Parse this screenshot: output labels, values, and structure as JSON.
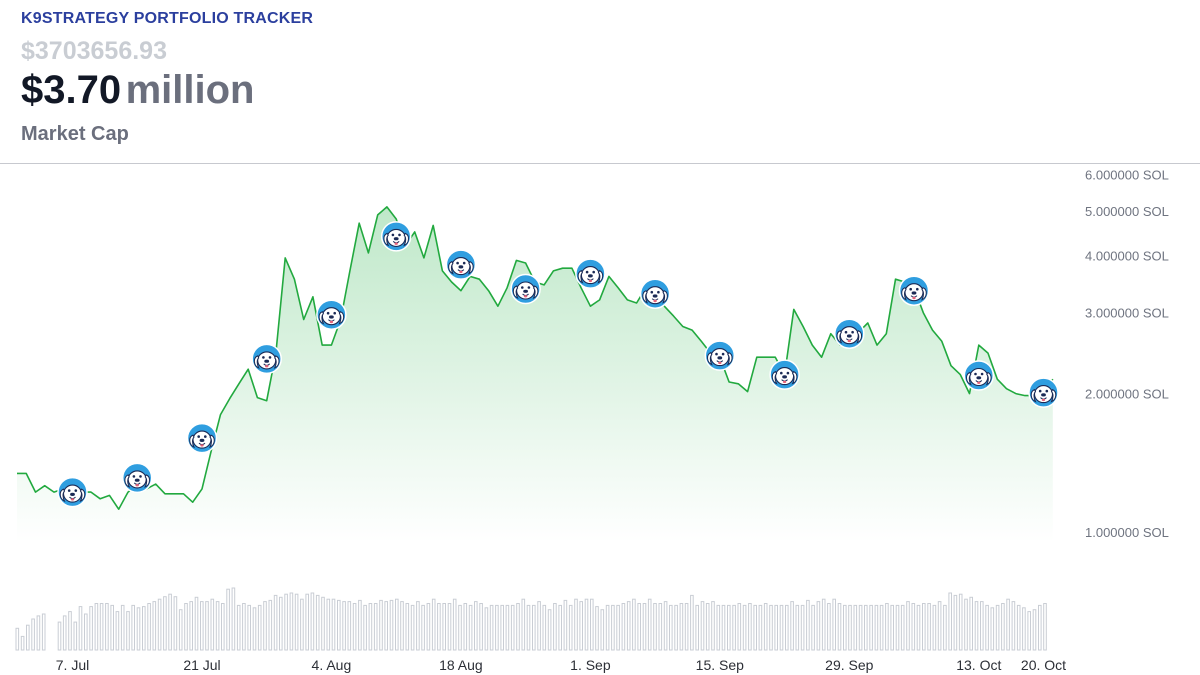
{
  "header": {
    "brand": "K9STRATEGY PORTFOLIO TRACKER",
    "raw_value": "$3703656.93",
    "cap_value": "$3.70",
    "cap_unit": "million",
    "cap_label": "Market Cap"
  },
  "colors": {
    "line": "#22a93f",
    "fill_top": "#bfe8c9",
    "volume": "#c9cdd4",
    "marker": "#2f9ee0"
  },
  "icons": {
    "marker": "dog-face-icon"
  },
  "chart_data": {
    "type": "line",
    "yscale": "log",
    "ylim": [
      0.95,
      6.2
    ],
    "xlim": [
      "2025-07-01",
      "2025-10-22"
    ],
    "y_ticks": [
      1,
      2,
      3,
      4,
      5,
      6
    ],
    "y_tick_labels": [
      "1.000000 SOL",
      "2.000000 SOL",
      "3.000000 SOL",
      "4.000000 SOL",
      "5.000000 SOL",
      "6.000000 SOL"
    ],
    "x_ticks": [
      "2025-07-07",
      "2025-07-21",
      "2025-08-04",
      "2025-08-18",
      "2025-09-01",
      "2025-09-15",
      "2025-09-29",
      "2025-10-13",
      "2025-10-20"
    ],
    "x_tick_labels": [
      "7. Jul",
      "21 Jul",
      "4. Aug",
      "18 Aug",
      "1. Sep",
      "15. Sep",
      "29. Sep",
      "13. Oct",
      "20. Oct"
    ],
    "grid": false,
    "series": [
      {
        "x": [
          "2025-07-01",
          "2025-07-02",
          "2025-07-03",
          "2025-07-04",
          "2025-07-05",
          "2025-07-06",
          "2025-07-07",
          "2025-07-08",
          "2025-07-09",
          "2025-07-10",
          "2025-07-11",
          "2025-07-12",
          "2025-07-13",
          "2025-07-14",
          "2025-07-15",
          "2025-07-16",
          "2025-07-17",
          "2025-07-18",
          "2025-07-19",
          "2025-07-20",
          "2025-07-21",
          "2025-07-22",
          "2025-07-23",
          "2025-07-24",
          "2025-07-25",
          "2025-07-26",
          "2025-07-27",
          "2025-07-28",
          "2025-07-29",
          "2025-07-30",
          "2025-07-31",
          "2025-08-01",
          "2025-08-02",
          "2025-08-03",
          "2025-08-04",
          "2025-08-05",
          "2025-08-06",
          "2025-08-07",
          "2025-08-08",
          "2025-08-09",
          "2025-08-10",
          "2025-08-11",
          "2025-08-12",
          "2025-08-13",
          "2025-08-14",
          "2025-08-15",
          "2025-08-16",
          "2025-08-17",
          "2025-08-18",
          "2025-08-19",
          "2025-08-20",
          "2025-08-21",
          "2025-08-22",
          "2025-08-23",
          "2025-08-24",
          "2025-08-25",
          "2025-08-26",
          "2025-08-27",
          "2025-08-28",
          "2025-08-29",
          "2025-08-30",
          "2025-08-31",
          "2025-09-01",
          "2025-09-02",
          "2025-09-03",
          "2025-09-04",
          "2025-09-05",
          "2025-09-06",
          "2025-09-07",
          "2025-09-08",
          "2025-09-09",
          "2025-09-10",
          "2025-09-11",
          "2025-09-12",
          "2025-09-13",
          "2025-09-14",
          "2025-09-15",
          "2025-09-16",
          "2025-09-17",
          "2025-09-18",
          "2025-09-19",
          "2025-09-20",
          "2025-09-21",
          "2025-09-22",
          "2025-09-23",
          "2025-09-24",
          "2025-09-25",
          "2025-09-26",
          "2025-09-27",
          "2025-09-28",
          "2025-09-29",
          "2025-09-30",
          "2025-10-01",
          "2025-10-02",
          "2025-10-03",
          "2025-10-04",
          "2025-10-05",
          "2025-10-06",
          "2025-10-07",
          "2025-10-08",
          "2025-10-09",
          "2025-10-10",
          "2025-10-11",
          "2025-10-12",
          "2025-10-13",
          "2025-10-14",
          "2025-10-15",
          "2025-10-16",
          "2025-10-17",
          "2025-10-18",
          "2025-10-19",
          "2025-10-20",
          "2025-10-21"
        ],
        "values": [
          1.34,
          1.34,
          1.22,
          1.26,
          1.22,
          1.24,
          1.2,
          1.22,
          1.22,
          1.18,
          1.2,
          1.12,
          1.22,
          1.26,
          1.24,
          1.27,
          1.21,
          1.21,
          1.21,
          1.16,
          1.24,
          1.5,
          1.8,
          1.95,
          2.1,
          2.26,
          1.96,
          1.93,
          2.45,
          3.95,
          3.55,
          2.9,
          3.25,
          2.55,
          2.55,
          2.9,
          3.7,
          4.7,
          4.05,
          4.9,
          5.1,
          4.8,
          4.2,
          4.5,
          3.95,
          4.65,
          3.7,
          3.5,
          3.35,
          3.6,
          3.55,
          3.35,
          3.1,
          3.4,
          3.9,
          3.85,
          3.5,
          3.45,
          3.7,
          3.75,
          3.75,
          3.4,
          3.1,
          3.2,
          3.6,
          3.4,
          3.2,
          3.15,
          3.4,
          3.35,
          3.1,
          2.95,
          2.8,
          2.75,
          2.6,
          2.45,
          2.4,
          2.12,
          2.1,
          2.02,
          2.4,
          2.4,
          2.4,
          2.2,
          3.05,
          2.8,
          2.55,
          2.4,
          2.7,
          2.55,
          2.6,
          2.72,
          2.85,
          2.55,
          2.7,
          3.55,
          3.5,
          3.4,
          3.0,
          2.75,
          2.6,
          2.3,
          2.2,
          2.0,
          2.55,
          2.45,
          2.15,
          2.05,
          2.0,
          1.98,
          1.98,
          2.0,
          2.15
        ]
      }
    ],
    "markers": [
      {
        "x": "2025-07-07",
        "y": 1.22
      },
      {
        "x": "2025-07-14",
        "y": 1.31
      },
      {
        "x": "2025-07-21",
        "y": 1.6
      },
      {
        "x": "2025-07-28",
        "y": 2.38
      },
      {
        "x": "2025-08-04",
        "y": 2.97
      },
      {
        "x": "2025-08-11",
        "y": 4.4
      },
      {
        "x": "2025-08-18",
        "y": 3.82
      },
      {
        "x": "2025-08-25",
        "y": 3.38
      },
      {
        "x": "2025-09-01",
        "y": 3.65
      },
      {
        "x": "2025-09-08",
        "y": 3.3
      },
      {
        "x": "2025-09-15",
        "y": 2.42
      },
      {
        "x": "2025-09-22",
        "y": 2.2
      },
      {
        "x": "2025-09-29",
        "y": 2.7
      },
      {
        "x": "2025-10-06",
        "y": 3.35
      },
      {
        "x": "2025-10-13",
        "y": 2.19
      },
      {
        "x": "2025-10-20",
        "y": 2.01
      }
    ],
    "volume": {
      "values": [
        0.35,
        0.22,
        0.4,
        0.5,
        0.55,
        0.58,
        0,
        0,
        0.45,
        0.55,
        0.62,
        0.45,
        0.7,
        0.58,
        0.7,
        0.75,
        0.75,
        0.75,
        0.72,
        0.62,
        0.72,
        0.62,
        0.72,
        0.68,
        0.7,
        0.75,
        0.78,
        0.82,
        0.86,
        0.9,
        0.86,
        0.65,
        0.75,
        0.78,
        0.85,
        0.78,
        0.78,
        0.82,
        0.78,
        0.75,
        0.98,
        1.0,
        0.72,
        0.75,
        0.72,
        0.68,
        0.72,
        0.78,
        0.8,
        0.88,
        0.85,
        0.9,
        0.92,
        0.9,
        0.82,
        0.9,
        0.92,
        0.88,
        0.85,
        0.82,
        0.82,
        0.8,
        0.78,
        0.78,
        0.75,
        0.8,
        0.72,
        0.75,
        0.75,
        0.8,
        0.78,
        0.8,
        0.82,
        0.78,
        0.75,
        0.72,
        0.78,
        0.72,
        0.75,
        0.82,
        0.75,
        0.75,
        0.75,
        0.82,
        0.72,
        0.75,
        0.72,
        0.78,
        0.75,
        0.68,
        0.72,
        0.72,
        0.72,
        0.72,
        0.72,
        0.75,
        0.82,
        0.72,
        0.72,
        0.78,
        0.72,
        0.65,
        0.75,
        0.72,
        0.8,
        0.72,
        0.82,
        0.78,
        0.82,
        0.82,
        0.7,
        0.65,
        0.72,
        0.72,
        0.72,
        0.75,
        0.78,
        0.82,
        0.75,
        0.75,
        0.82,
        0.75,
        0.75,
        0.78,
        0.72,
        0.72,
        0.75,
        0.75,
        0.88,
        0.72,
        0.78,
        0.75,
        0.78,
        0.72,
        0.72,
        0.72,
        0.72,
        0.75,
        0.72,
        0.75,
        0.72,
        0.72,
        0.75,
        0.72,
        0.72,
        0.72,
        0.72,
        0.78,
        0.72,
        0.72,
        0.8,
        0.72,
        0.78,
        0.82,
        0.75,
        0.82,
        0.75,
        0.72,
        0.72,
        0.72,
        0.72,
        0.72,
        0.72,
        0.72,
        0.72,
        0.75,
        0.72,
        0.72,
        0.72,
        0.78,
        0.75,
        0.72,
        0.75,
        0.75,
        0.72,
        0.78,
        0.72,
        0.92,
        0.88,
        0.9,
        0.82,
        0.85,
        0.78,
        0.78,
        0.72,
        0.68,
        0.72,
        0.75,
        0.82,
        0.78,
        0.72,
        0.68,
        0.62,
        0.65,
        0.72,
        0.75
      ]
    }
  }
}
